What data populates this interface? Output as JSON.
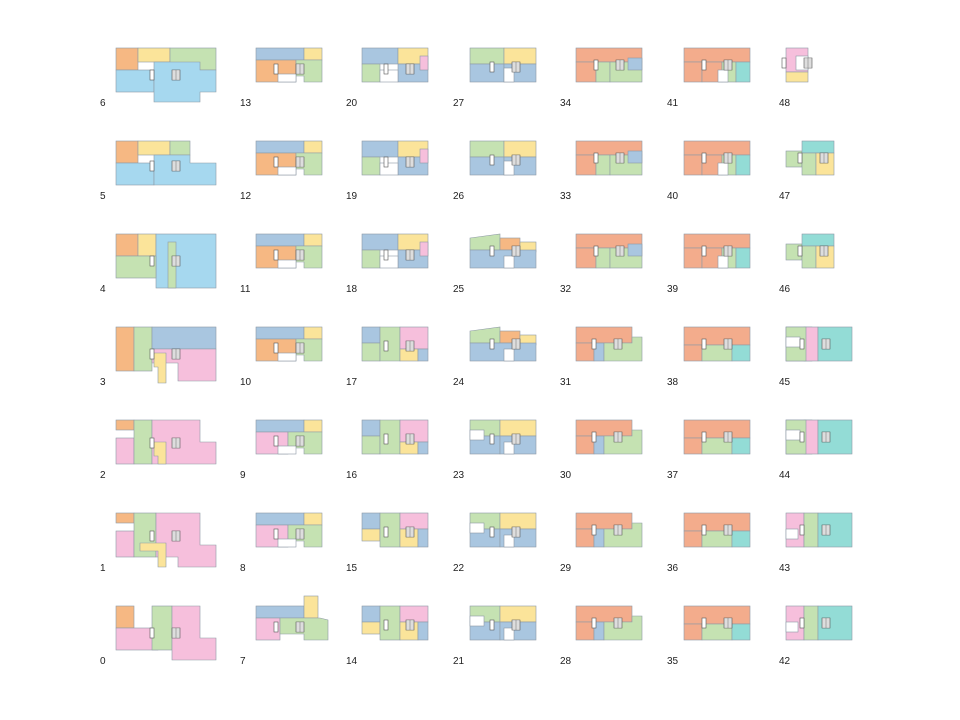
{
  "palette": {
    "blue": "#a9c6e0",
    "orange": "#f6b883",
    "yellow": "#fbe49a",
    "green": "#c5e2b2",
    "pink": "#f6bfdc",
    "salmon": "#f3ac8c",
    "sky": "#a6d8ef",
    "teal": "#93dcd6",
    "outline": "#8e9aa6"
  },
  "floor_plans": [
    {
      "label": "6",
      "shape": "L6"
    },
    {
      "label": "5",
      "shape": "L5"
    },
    {
      "label": "4",
      "shape": "L4"
    },
    {
      "label": "3",
      "shape": "L3"
    },
    {
      "label": "2",
      "shape": "L2"
    },
    {
      "label": "1",
      "shape": "L1"
    },
    {
      "label": "0",
      "shape": "L0"
    },
    {
      "label": "13",
      "shape": "A"
    },
    {
      "label": "12",
      "shape": "A"
    },
    {
      "label": "11",
      "shape": "A"
    },
    {
      "label": "10",
      "shape": "A"
    },
    {
      "label": "9",
      "shape": "A2"
    },
    {
      "label": "8",
      "shape": "A2"
    },
    {
      "label": "7",
      "shape": "A3"
    },
    {
      "label": "20",
      "shape": "B"
    },
    {
      "label": "19",
      "shape": "B"
    },
    {
      "label": "18",
      "shape": "B"
    },
    {
      "label": "17",
      "shape": "B2"
    },
    {
      "label": "16",
      "shape": "B2"
    },
    {
      "label": "15",
      "shape": "B3"
    },
    {
      "label": "14",
      "shape": "B3"
    },
    {
      "label": "27",
      "shape": "C"
    },
    {
      "label": "26",
      "shape": "C"
    },
    {
      "label": "25",
      "shape": "C2"
    },
    {
      "label": "24",
      "shape": "C2"
    },
    {
      "label": "23",
      "shape": "C3"
    },
    {
      "label": "22",
      "shape": "C3"
    },
    {
      "label": "21",
      "shape": "C3"
    },
    {
      "label": "34",
      "shape": "D"
    },
    {
      "label": "33",
      "shape": "D"
    },
    {
      "label": "32",
      "shape": "D"
    },
    {
      "label": "31",
      "shape": "D2"
    },
    {
      "label": "30",
      "shape": "D2"
    },
    {
      "label": "29",
      "shape": "D2"
    },
    {
      "label": "28",
      "shape": "D2"
    },
    {
      "label": "41",
      "shape": "E"
    },
    {
      "label": "40",
      "shape": "E"
    },
    {
      "label": "39",
      "shape": "E"
    },
    {
      "label": "38",
      "shape": "E2"
    },
    {
      "label": "37",
      "shape": "E2"
    },
    {
      "label": "36",
      "shape": "E2"
    },
    {
      "label": "35",
      "shape": "E2"
    },
    {
      "label": "48",
      "shape": "F"
    },
    {
      "label": "47",
      "shape": "F2"
    },
    {
      "label": "46",
      "shape": "F2"
    },
    {
      "label": "45",
      "shape": "F3"
    },
    {
      "label": "44",
      "shape": "F3"
    },
    {
      "label": "43",
      "shape": "F4"
    },
    {
      "label": "42",
      "shape": "F4"
    }
  ]
}
